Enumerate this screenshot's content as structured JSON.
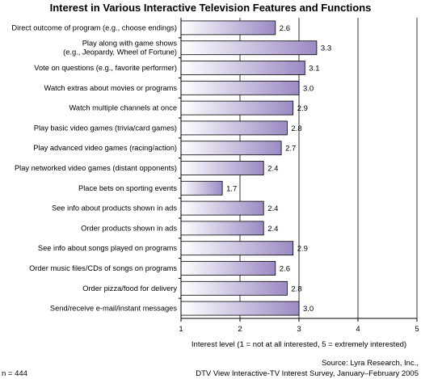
{
  "chart_data": {
    "type": "bar",
    "orientation": "horizontal",
    "title": "Interest in Various Interactive Television Features and Functions",
    "xlabel": "Interest level (1 = not at all interested, 5 = extremely interested)",
    "xlim": [
      1,
      5
    ],
    "xticks": [
      "1",
      "2",
      "3",
      "4",
      "5"
    ],
    "grid": true,
    "categories": [
      [
        "Direct outcome of program (e.g., choose endings)"
      ],
      [
        "Play along with game shows",
        "(e.g., Jeopardy, Wheel of Fortune)"
      ],
      [
        "Vote on questions (e.g., favorite performer)"
      ],
      [
        "Watch extras about movies or programs"
      ],
      [
        "Watch multiple channels at once"
      ],
      [
        "Play basic video games (trivia/card games)"
      ],
      [
        "Play advanced video games (racing/action)"
      ],
      [
        "Play networked video games (distant opponents)"
      ],
      [
        "Place bets on sporting events"
      ],
      [
        "See info about products shown in ads"
      ],
      [
        "Order products shown in ads"
      ],
      [
        "See info about songs played on programs"
      ],
      [
        "Order music files/CDs of songs on programs"
      ],
      [
        "Order pizza/food for delivery"
      ],
      [
        "Send/receive e-mail/instant messages"
      ]
    ],
    "values": [
      2.6,
      3.3,
      3.1,
      3.0,
      2.9,
      2.8,
      2.7,
      2.4,
      1.7,
      2.4,
      2.4,
      2.9,
      2.6,
      2.8,
      3.0
    ],
    "value_labels": [
      "2.6",
      "3.3",
      "3.1",
      "3.0",
      "2.9",
      "2.8",
      "2.7",
      "2.4",
      "1.7",
      "2.4",
      "2.4",
      "2.9",
      "2.6",
      "2.8",
      "3.0"
    ],
    "bar_color_start": "#ffffff",
    "bar_color_end": "#9b8ac4"
  },
  "source": {
    "line1": "Source: Lyra Research, Inc.,",
    "line2": "DTV View Interactive-TV Interest Survey, January–February 2005"
  },
  "sample_note": "n = 444"
}
